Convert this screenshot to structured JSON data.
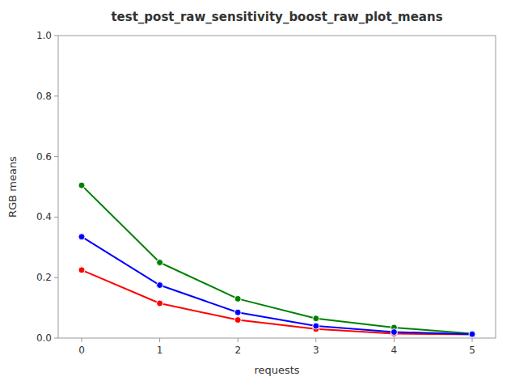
{
  "chart_data": {
    "type": "line",
    "title": "test_post_raw_sensitivity_boost_raw_plot_means",
    "xlabel": "requests",
    "ylabel": "RGB means",
    "xlim": [
      -0.3,
      5.3
    ],
    "ylim": [
      0.0,
      1.0
    ],
    "xticks": [
      0,
      1,
      2,
      3,
      4,
      5
    ],
    "yticks": [
      {
        "value": 0.0,
        "label": "0.0"
      },
      0.2,
      0.4,
      0.6,
      0.8,
      {
        "value": 1.0,
        "label": "1.0"
      }
    ],
    "x": [
      0,
      1,
      2,
      3,
      4,
      5
    ],
    "series": [
      {
        "color": "#ff0000",
        "values": [
          0.225,
          0.115,
          0.06,
          0.03,
          0.015,
          0.012
        ]
      },
      {
        "color": "#008000",
        "values": [
          0.505,
          0.25,
          0.13,
          0.065,
          0.035,
          0.015
        ]
      },
      {
        "color": "#0000ff",
        "values": [
          0.335,
          0.175,
          0.085,
          0.04,
          0.02,
          0.013
        ]
      }
    ],
    "marker": "circle",
    "grid": false
  }
}
